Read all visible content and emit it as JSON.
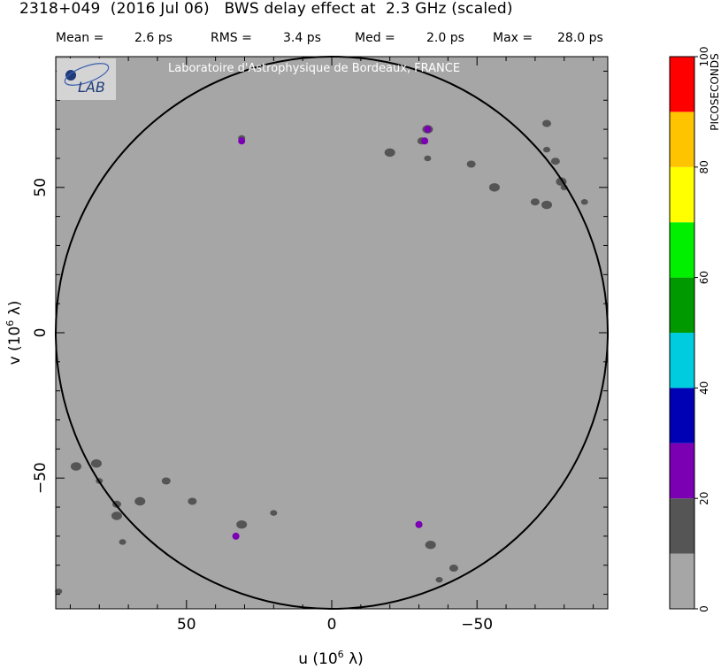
{
  "title": "2318+049  (2016 Jul 06)   BWS delay effect at  2.3 GHz (scaled)",
  "stats": {
    "mean_label": "Mean =",
    "mean_value": "2.6 ps",
    "rms_label": "RMS =",
    "rms_value": "3.4 ps",
    "med_label": "Med =",
    "med_value": "2.0 ps",
    "max_label": "Max =",
    "max_value": "28.0 ps"
  },
  "watermark": "Laboratoire d'Astrophysique de Bordeaux, FRANCE",
  "logo_text": "LAB",
  "chart_data": {
    "type": "heatmap",
    "xlabel": "u  (10^6 λ)",
    "ylabel": "v  (10^6 λ)",
    "x_range": [
      95,
      -95
    ],
    "y_range": [
      -95,
      95
    ],
    "x_ticks": [
      50,
      0,
      -50
    ],
    "x_tick_labels": [
      "50",
      "0",
      "−50"
    ],
    "y_ticks": [
      50,
      0,
      -50
    ],
    "y_tick_labels": [
      "50",
      "0",
      "−50"
    ],
    "circle_radius": 95,
    "colorbar": {
      "label": "PICOSECONDS",
      "min": 0,
      "max": 100,
      "tick_values": [
        0,
        20,
        40,
        60,
        80,
        100
      ],
      "tick_labels": [
        "0",
        "20",
        "40",
        "60",
        "80",
        "100"
      ],
      "colors": [
        "#a6a6a6",
        "#555555",
        "#7b00b4",
        "#0000b4",
        "#00cce0",
        "#009a00",
        "#00f000",
        "#ffff00",
        "#ffc400",
        "#ff0000"
      ]
    },
    "colors": {
      "background": "#a6a6a6",
      "level_10_20": "#555555",
      "level_20_30": "#7b00b4"
    },
    "features": [
      {
        "u": 31,
        "v": 67,
        "level": 10
      },
      {
        "u": 31,
        "v": 66,
        "level": 20
      },
      {
        "u": -33,
        "v": 70,
        "level": 10
      },
      {
        "u": -33,
        "v": 70,
        "level": 20
      },
      {
        "u": -31,
        "v": 66,
        "level": 10
      },
      {
        "u": -32,
        "v": 66,
        "level": 20
      },
      {
        "u": 33,
        "v": -70,
        "level": 10
      },
      {
        "u": 33,
        "v": -70,
        "level": 20
      },
      {
        "u": 31,
        "v": -66,
        "level": 10
      },
      {
        "u": -30,
        "v": -66,
        "level": 10
      },
      {
        "u": -30,
        "v": -66,
        "level": 20
      },
      {
        "u": -20,
        "v": 62,
        "level": 10
      },
      {
        "u": -33,
        "v": 60,
        "level": 10
      },
      {
        "u": -48,
        "v": 58,
        "level": 10
      },
      {
        "u": -56,
        "v": 50,
        "level": 10
      },
      {
        "u": -74,
        "v": 63,
        "level": 10
      },
      {
        "u": -77,
        "v": 59,
        "level": 10
      },
      {
        "u": -79,
        "v": 52,
        "level": 10
      },
      {
        "u": -80,
        "v": 50,
        "level": 10
      },
      {
        "u": -70,
        "v": 45,
        "level": 10
      },
      {
        "u": -74,
        "v": 44,
        "level": 10
      },
      {
        "u": -87,
        "v": 45,
        "level": 10
      },
      {
        "u": -74,
        "v": 72,
        "level": 10
      },
      {
        "u": 81,
        "v": -45,
        "level": 10
      },
      {
        "u": 80,
        "v": -51,
        "level": 10
      },
      {
        "u": 74,
        "v": -59,
        "level": 10
      },
      {
        "u": 74,
        "v": -63,
        "level": 10
      },
      {
        "u": 72,
        "v": -72,
        "level": 10
      },
      {
        "u": 57,
        "v": -51,
        "level": 10
      },
      {
        "u": 66,
        "v": -58,
        "level": 10
      },
      {
        "u": 20,
        "v": -62,
        "level": 10
      },
      {
        "u": 48,
        "v": -58,
        "level": 10
      },
      {
        "u": -34,
        "v": -73,
        "level": 10
      },
      {
        "u": -37,
        "v": -85,
        "level": 10
      },
      {
        "u": -42,
        "v": -81,
        "level": 10
      },
      {
        "u": 88,
        "v": -46,
        "level": 10
      },
      {
        "u": 94,
        "v": -89,
        "level": 10
      }
    ]
  }
}
